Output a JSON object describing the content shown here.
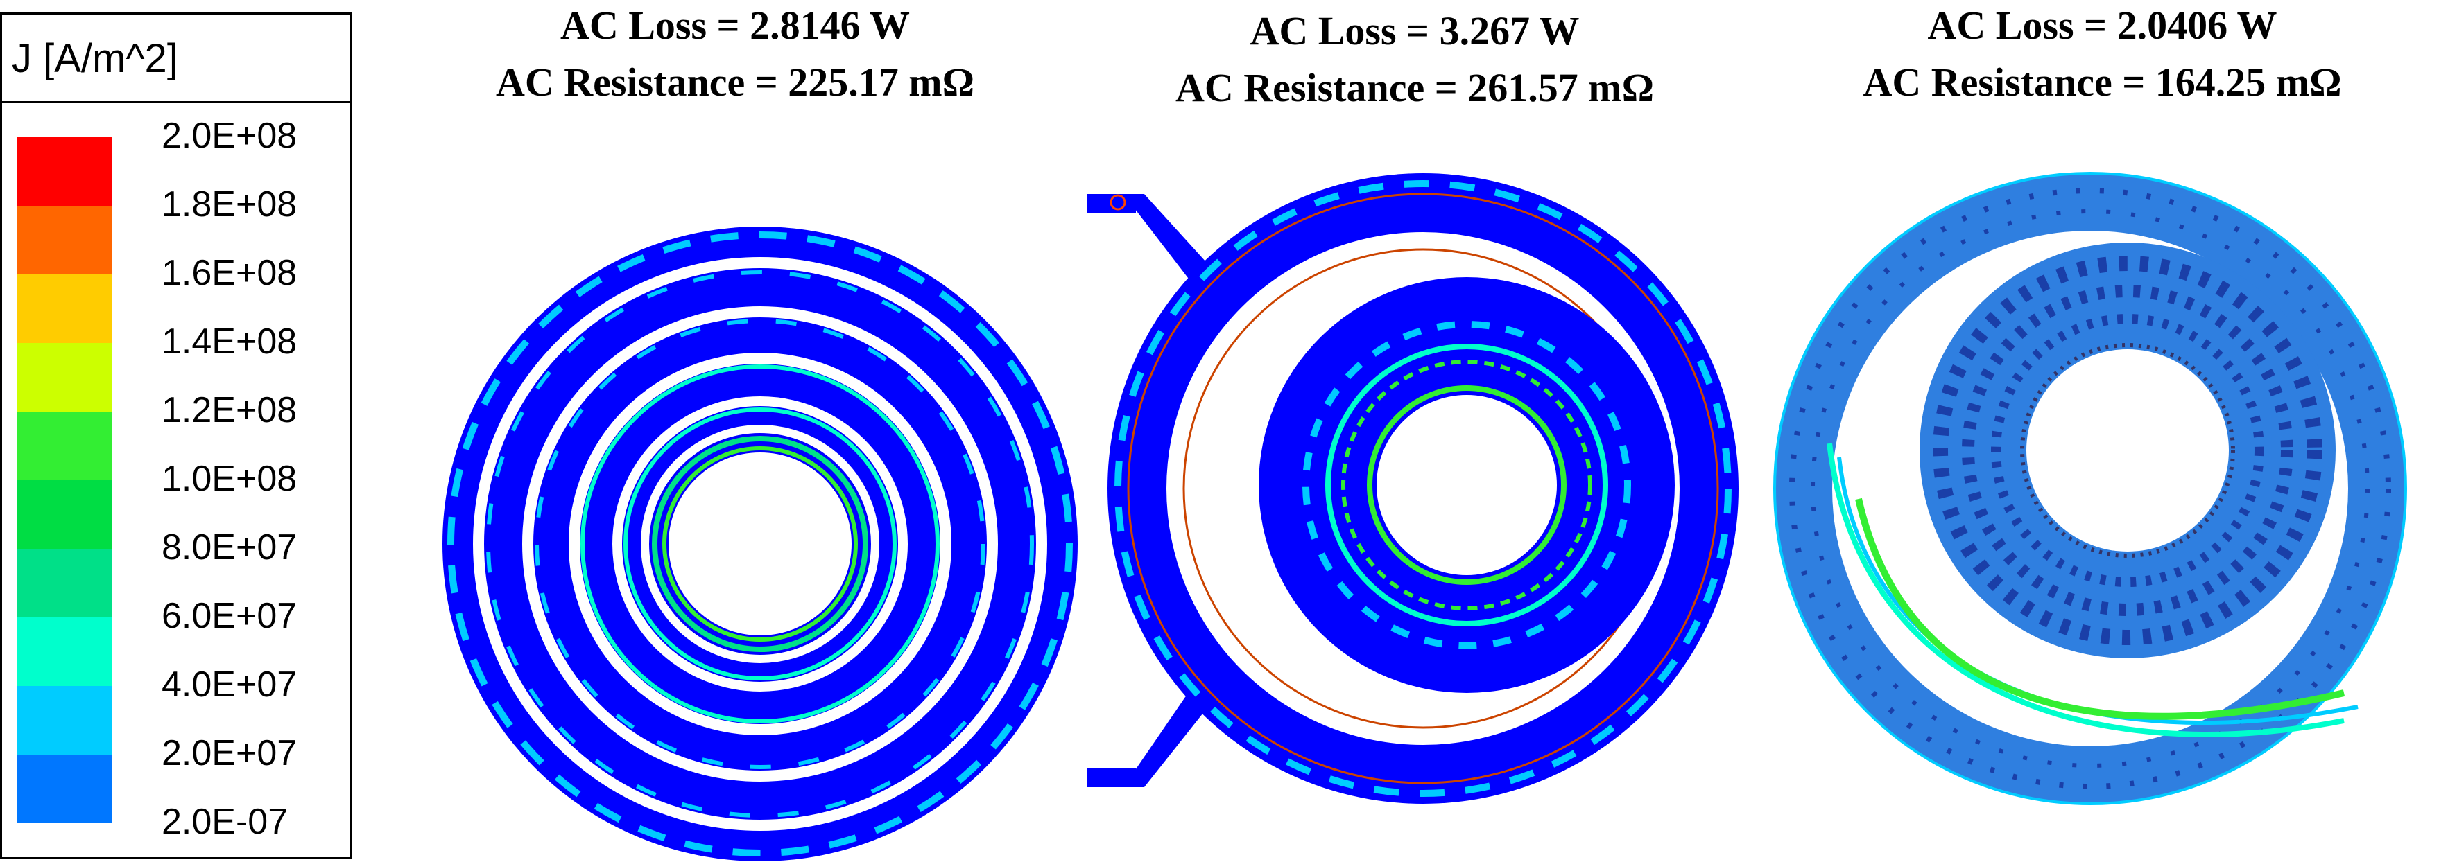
{
  "legend": {
    "title": "J [A/m^2]",
    "ticks": [
      "2.0E+08",
      "1.8E+08",
      "1.6E+08",
      "1.4E+08",
      "1.2E+08",
      "1.0E+08",
      "8.0E+07",
      "6.0E+07",
      "4.0E+07",
      "2.0E+07",
      "2.0E-07"
    ],
    "colors": [
      "#ff0000",
      "#ff6600",
      "#ffcc00",
      "#ccff00",
      "#33ee33",
      "#00dd44",
      "#00e088",
      "#00ffcc",
      "#00ccff",
      "#0077ff",
      "#0000ff"
    ]
  },
  "panels": [
    {
      "loss_line": "AC Loss = 2.8146 W",
      "resistance_line": "AC Resistance = 225.17 mΩ",
      "pattern": "concentric-rings"
    },
    {
      "loss_line": "AC Loss = 3.267 W",
      "resistance_line": "AC Resistance = 261.57 mΩ",
      "pattern": "dual-winding-with-leads"
    },
    {
      "loss_line": "AC Loss = 2.0406 W",
      "resistance_line": "AC Resistance = 164.25 mΩ",
      "pattern": "litz-spiral"
    }
  ]
}
